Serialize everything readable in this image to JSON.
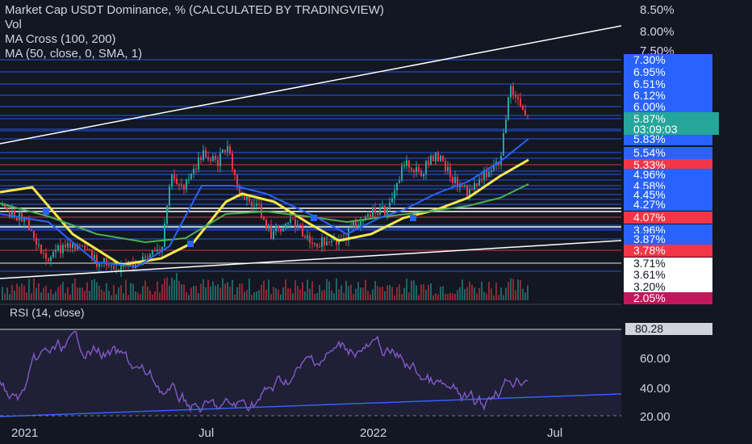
{
  "legend": {
    "title": "Market Cap USDT Dominance, % (CALCULATED BY TRADINGVIEW)",
    "vol": "Vol",
    "ma_cross": "MA Cross (100, 200)",
    "ma": "MA (50, close, 0, SMA, 1)"
  },
  "rsi": {
    "title": "RSI (14, close)",
    "current": "80.28",
    "ticks": [
      "60.00",
      "40.00",
      "20.00"
    ]
  },
  "price_axis": {
    "ticks": [
      "8.50%",
      "8.00%",
      "7.50%"
    ],
    "current_value": "5.87%",
    "countdown": "03:09:03",
    "labels": [
      {
        "text": "7.30%",
        "style": "blue"
      },
      {
        "text": "6.95%",
        "style": "blue"
      },
      {
        "text": "6.51%",
        "style": "blue"
      },
      {
        "text": "6.12%",
        "style": "blue"
      },
      {
        "text": "6.00%",
        "style": "blue"
      },
      {
        "text": "5.83%",
        "style": "blue"
      },
      {
        "text": "5.54%",
        "style": "blue"
      },
      {
        "text": "5.33%",
        "style": "red"
      },
      {
        "text": "4.96%",
        "style": "blue"
      },
      {
        "text": "4.58%",
        "style": "blue"
      },
      {
        "text": "4.45%",
        "style": "blue"
      },
      {
        "text": "4.27%",
        "style": "blue"
      },
      {
        "text": "4.07%",
        "style": "red"
      },
      {
        "text": "3.96%",
        "style": "blue"
      },
      {
        "text": "3.87%",
        "style": "blue"
      },
      {
        "text": "3.78%",
        "style": "red"
      },
      {
        "text": "3.71%",
        "style": "white"
      },
      {
        "text": "3.61%",
        "style": "white"
      },
      {
        "text": "3.20%",
        "style": "white"
      },
      {
        "text": "2.05%",
        "style": "magenta"
      }
    ]
  },
  "time_axis": [
    "2021",
    "Jul",
    "2022",
    "Jul"
  ],
  "colors": {
    "background": "#131722",
    "blue": "#2962ff",
    "red": "#f23645",
    "magenta": "#c2185b",
    "teal": "#26a69a",
    "ma50": "#f5e94a",
    "ma100": "#4caf50",
    "ma200": "#2962ff",
    "rsi": "#7e57c2"
  },
  "icons": {
    "cross_marker": "square-marker-icon"
  }
}
